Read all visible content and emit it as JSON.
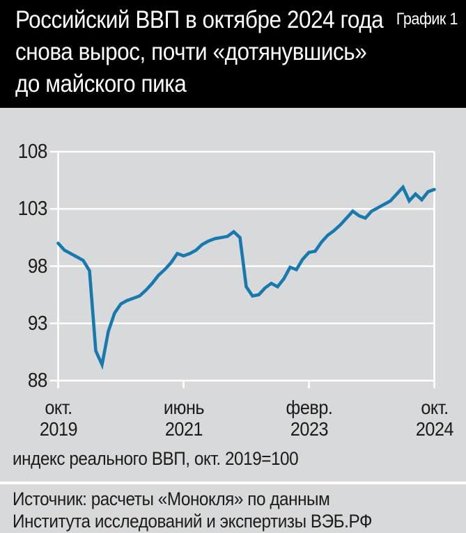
{
  "header": {
    "title": "Российский ВВП в октябре 2024 года\nснова вырос, почти «дотянувшись»\nдо майского пика",
    "figure_label": "График 1"
  },
  "chart_data": {
    "type": "line",
    "title": "Российский ВВП в октябре 2024 года снова вырос, почти «дотянувшись» до майского пика",
    "xlabel": "",
    "ylabel": "индекс реального ВВП, окт. 2019=100",
    "ylim": [
      88,
      108
    ],
    "y_ticks": [
      "108",
      "103",
      "98",
      "93",
      "88"
    ],
    "x_ticks": [
      {
        "month": "окт.",
        "year": "2019",
        "month_index": 0
      },
      {
        "month": "июнь",
        "year": "2021",
        "month_index": 20
      },
      {
        "month": "февр.",
        "year": "2023",
        "month_index": 40
      },
      {
        "month": "окт.",
        "year": "2024",
        "month_index": 60
      }
    ],
    "x_start": "окт. 2019",
    "x_end": "окт. 2024",
    "frequency": "monthly",
    "grid": "horizontal-white",
    "legend": "none",
    "series": [
      {
        "name": "индекс реального ВВП, окт. 2019=100",
        "color": "#1779ad",
        "values": [
          100.0,
          99.4,
          99.1,
          98.8,
          98.5,
          97.6,
          90.6,
          89.4,
          92.3,
          93.9,
          94.7,
          95.0,
          95.2,
          95.4,
          95.9,
          96.5,
          97.2,
          97.7,
          98.3,
          99.1,
          98.9,
          99.1,
          99.4,
          99.9,
          100.2,
          100.4,
          100.5,
          100.6,
          101.0,
          100.5,
          96.2,
          95.4,
          95.5,
          96.1,
          96.5,
          96.2,
          96.9,
          97.9,
          97.7,
          98.6,
          99.2,
          99.3,
          100.1,
          100.7,
          101.1,
          101.6,
          102.2,
          102.8,
          102.4,
          102.2,
          102.8,
          103.1,
          103.4,
          103.7,
          104.3,
          104.9,
          103.7,
          104.3,
          103.8,
          104.5,
          104.7
        ]
      }
    ]
  },
  "caption": "индекс реального ВВП, окт. 2019=100",
  "source": "Источник: расчеты «Монокля» по данным\nИнститута исследований и экспертизы ВЭБ.РФ",
  "colors": {
    "header_bg": "#000000",
    "header_text": "#ffffff",
    "body_bg": "#d8d9da",
    "grid": "#ffffff",
    "text": "#1b1b1b",
    "line": "#1779ad"
  }
}
